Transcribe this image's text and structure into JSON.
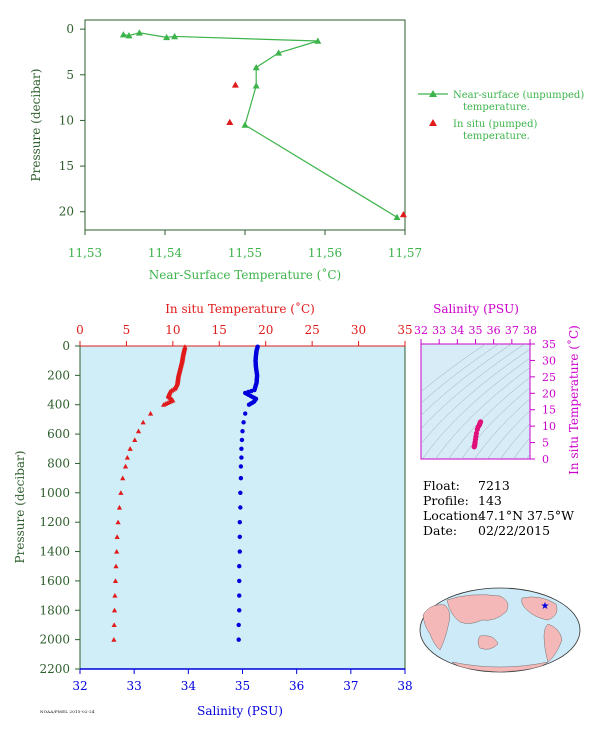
{
  "colors": {
    "green": "#3cb44b",
    "red": "#e01b1b",
    "blue": "#0000dd",
    "magenta": "#cc00cc",
    "axis_green": "#2e5e2e",
    "panel_fill": "#d0eef8",
    "inset_fill": "#d8ecf8",
    "land": "#f4b8b8",
    "ocean": "#cdeaf8"
  },
  "info": {
    "float_label": "Float:",
    "float_value": "7213",
    "profile_label": "Profile:",
    "profile_value": "143",
    "location_label": "Location:",
    "location_value": "47.1°N  37.5°W",
    "date_label": "Date:",
    "date_value": "02/22/2015"
  },
  "credit": "NOAA/PMEL 2015-02-24",
  "chart_data": [
    {
      "type": "line",
      "xlabel": "Near-Surface Temperature (˚C)",
      "ylabel": "Pressure (decibar)",
      "xlim": [
        11.53,
        11.57
      ],
      "ylim": [
        22,
        -1
      ],
      "x_ticks": [
        "11.53",
        "11.54",
        "11.55",
        "11.56",
        "11.57"
      ],
      "y_ticks": [
        "0",
        "5",
        "10",
        "15",
        "20"
      ],
      "legend_position": "right",
      "series": [
        {
          "name": "Near-surface (unpumped) temperature.",
          "marker": "triangle",
          "points": [
            [
              11.5348,
              0.6
            ],
            [
              11.5355,
              0.7
            ],
            [
              11.5368,
              0.4
            ],
            [
              11.5402,
              0.9
            ],
            [
              11.5412,
              0.8
            ],
            [
              11.5591,
              1.3
            ],
            [
              11.5542,
              2.6
            ],
            [
              11.5514,
              4.2
            ],
            [
              11.5514,
              6.2
            ],
            [
              11.55,
              10.5
            ],
            [
              11.569,
              20.6
            ]
          ]
        },
        {
          "name": "In situ (pumped) temperature.",
          "marker": "triangle",
          "points": [
            [
              11.5488,
              6.1
            ],
            [
              11.5481,
              10.2
            ],
            [
              11.5698,
              20.3
            ]
          ]
        }
      ]
    },
    {
      "type": "scatter",
      "title_top": "In situ Temperature (˚C)",
      "xlabel": "Salinity (PSU)",
      "ylabel": "Pressure (decibar)",
      "temperature_axis": {
        "lim": [
          0,
          35
        ],
        "ticks": [
          "0",
          "5",
          "10",
          "15",
          "20",
          "25",
          "30",
          "35"
        ]
      },
      "salinity_axis": {
        "lim": [
          32,
          38
        ],
        "ticks": [
          "32",
          "33",
          "34",
          "35",
          "36",
          "37",
          "38"
        ]
      },
      "pressure_axis": {
        "lim": [
          2200,
          0
        ],
        "ticks": [
          "0",
          "200",
          "400",
          "600",
          "800",
          "1000",
          "1200",
          "1400",
          "1600",
          "1800",
          "2000",
          "2200"
        ]
      },
      "series": [
        {
          "name": "temperature",
          "marker": "triangle",
          "points": [
            [
              11.3,
              5
            ],
            [
              11.2,
              30
            ],
            [
              11.1,
              60
            ],
            [
              11.0,
              100
            ],
            [
              10.8,
              150
            ],
            [
              10.6,
              200
            ],
            [
              10.5,
              250
            ],
            [
              10.2,
              290
            ],
            [
              9.7,
              310
            ],
            [
              9.5,
              340
            ],
            [
              10.0,
              370
            ],
            [
              9.0,
              400
            ],
            [
              7.6,
              460
            ],
            [
              6.8,
              520
            ],
            [
              6.3,
              580
            ],
            [
              5.9,
              640
            ],
            [
              5.4,
              700
            ],
            [
              5.1,
              760
            ],
            [
              4.9,
              820
            ],
            [
              4.6,
              900
            ],
            [
              4.4,
              1000
            ],
            [
              4.25,
              1100
            ],
            [
              4.1,
              1200
            ],
            [
              4.0,
              1300
            ],
            [
              3.95,
              1400
            ],
            [
              3.88,
              1500
            ],
            [
              3.82,
              1600
            ],
            [
              3.76,
              1700
            ],
            [
              3.72,
              1800
            ],
            [
              3.68,
              1900
            ],
            [
              3.65,
              2000
            ]
          ]
        },
        {
          "name": "salinity",
          "marker": "circle",
          "points": [
            [
              35.28,
              5
            ],
            [
              35.26,
              30
            ],
            [
              35.25,
              60
            ],
            [
              35.24,
              100
            ],
            [
              35.25,
              150
            ],
            [
              35.27,
              200
            ],
            [
              35.26,
              250
            ],
            [
              35.22,
              300
            ],
            [
              35.05,
              320
            ],
            [
              35.15,
              340
            ],
            [
              35.25,
              360
            ],
            [
              35.21,
              380
            ],
            [
              35.12,
              400
            ],
            [
              35.05,
              460
            ],
            [
              35.02,
              520
            ],
            [
              35.0,
              580
            ],
            [
              34.99,
              640
            ],
            [
              34.98,
              700
            ],
            [
              34.98,
              760
            ],
            [
              34.97,
              820
            ],
            [
              34.97,
              900
            ],
            [
              34.96,
              1000
            ],
            [
              34.96,
              1100
            ],
            [
              34.95,
              1200
            ],
            [
              34.95,
              1300
            ],
            [
              34.95,
              1400
            ],
            [
              34.94,
              1500
            ],
            [
              34.94,
              1600
            ],
            [
              34.94,
              1700
            ],
            [
              34.94,
              1800
            ],
            [
              34.93,
              1900
            ],
            [
              34.93,
              2000
            ]
          ]
        }
      ]
    },
    {
      "type": "scatter",
      "title_top": "Salinity (PSU)",
      "ylabel": "In situ Temperature (˚C)",
      "salinity_axis": {
        "lim": [
          32,
          38
        ],
        "ticks": [
          "32",
          "33",
          "34",
          "35",
          "36",
          "37",
          "38"
        ]
      },
      "temperature_axis": {
        "lim": [
          0,
          35
        ],
        "ticks": [
          "0",
          "5",
          "10",
          "15",
          "20",
          "25",
          "30",
          "35"
        ]
      },
      "points": [
        [
          35.28,
          11.3
        ],
        [
          35.26,
          11.1
        ],
        [
          35.24,
          10.8
        ],
        [
          35.22,
          10.4
        ],
        [
          35.15,
          9.8
        ],
        [
          35.1,
          9.0
        ],
        [
          35.05,
          7.8
        ],
        [
          35.02,
          6.8
        ],
        [
          35.0,
          6.0
        ],
        [
          34.98,
          5.2
        ],
        [
          34.97,
          4.8
        ],
        [
          34.96,
          4.4
        ],
        [
          34.95,
          4.1
        ],
        [
          34.94,
          3.9
        ],
        [
          34.93,
          3.7
        ]
      ]
    }
  ]
}
